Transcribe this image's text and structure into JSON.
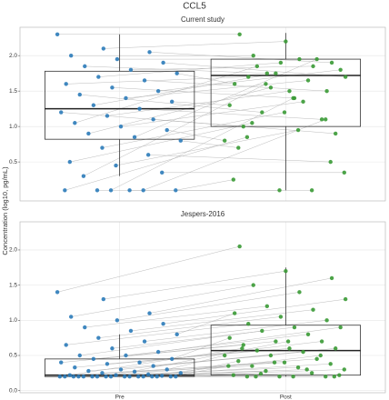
{
  "title": "CCL5",
  "y_label": "Concentration (log10, pg/mL)",
  "chart_data": [
    {
      "type": "box",
      "title": "Current study",
      "paired": true,
      "grid": true,
      "colors": [
        "#2b7bb9",
        "#3a9a35"
      ],
      "ylim": [
        -0.05,
        2.4
      ],
      "yticks": [
        0.5,
        {
          "value": 1,
          "label": "1.0"
        },
        1.5,
        {
          "value": 2,
          "label": "2.0"
        }
      ],
      "boxes": [
        {
          "low": 0.3,
          "q1": 0.82,
          "median": 1.25,
          "q3": 1.78,
          "high": 2.3
        },
        {
          "low": 0.1,
          "q1": 1.0,
          "median": 1.72,
          "q3": 1.95,
          "high": 2.32
        }
      ],
      "points": [
        [
          2.3,
          2.1,
          2.05,
          2.0,
          1.95,
          1.9,
          1.85,
          1.8,
          1.75,
          1.7,
          1.65,
          1.6,
          1.55,
          1.5,
          1.45,
          1.4,
          1.35,
          1.3,
          1.25,
          1.2,
          1.15,
          1.1,
          1.05,
          1.0,
          0.95,
          0.9,
          0.85,
          0.8,
          0.7,
          0.6,
          0.5,
          0.45,
          0.35,
          0.3,
          0.1,
          0.1,
          0.1,
          0.1,
          0.1,
          0.1
        ],
        [
          2.3,
          2.2,
          1.9,
          2.0,
          1.95,
          1.7,
          1.75,
          1.85,
          1.6,
          1.9,
          1.5,
          1.7,
          1.4,
          1.8,
          1.2,
          1.65,
          1.3,
          1.75,
          1.1,
          1.0,
          1.5,
          0.9,
          1.85,
          1.35,
          0.8,
          1.55,
          1.95,
          0.7,
          1.2,
          0.5,
          1.05,
          0.95,
          0.35,
          1.6,
          0.1,
          0.25,
          0.1,
          1.1,
          0.85,
          1.4
        ]
      ]
    },
    {
      "type": "box",
      "title": "Jespers-2016",
      "paired": true,
      "grid": true,
      "categories": [
        "Pre",
        "Post"
      ],
      "colors": [
        "#2b7bb9",
        "#3a9a35"
      ],
      "ylim": [
        -0.03,
        2.4
      ],
      "yticks": [
        {
          "value": 0,
          "label": "0.0"
        },
        0.5,
        {
          "value": 1,
          "label": "1.0"
        },
        1.5,
        {
          "value": 2,
          "label": "2.0"
        }
      ],
      "boxes": [
        {
          "low": 0.2,
          "q1": 0.2,
          "median": 0.22,
          "q3": 0.45,
          "high": 0.8
        },
        {
          "low": 0.2,
          "q1": 0.22,
          "median": 0.57,
          "q3": 0.93,
          "high": 1.75
        }
      ],
      "points": [
        [
          1.4,
          1.3,
          1.1,
          1.05,
          1.0,
          0.95,
          0.9,
          0.85,
          0.8,
          0.75,
          0.7,
          0.65,
          0.6,
          0.55,
          0.5,
          0.5,
          0.45,
          0.45,
          0.4,
          0.4,
          0.38,
          0.35,
          0.33,
          0.3,
          0.3,
          0.28,
          0.27,
          0.25,
          0.25,
          0.23,
          0.22,
          0.22,
          0.21,
          0.2,
          0.2,
          0.2,
          0.2,
          0.2,
          0.2,
          0.2,
          0.2,
          0.2,
          0.2,
          0.2,
          0.2,
          0.2,
          0.2,
          0.2,
          0.2,
          0.2
        ],
        [
          2.05,
          1.7,
          1.6,
          1.5,
          1.4,
          1.3,
          1.2,
          1.15,
          1.1,
          1.05,
          1.0,
          0.95,
          0.9,
          0.9,
          0.85,
          0.8,
          0.75,
          0.7,
          0.7,
          0.65,
          0.6,
          0.6,
          0.57,
          0.55,
          0.5,
          0.5,
          0.45,
          0.42,
          0.4,
          0.38,
          0.35,
          0.33,
          0.3,
          0.28,
          0.25,
          0.22,
          0.2,
          0.2,
          0.2,
          0.2,
          0.22,
          0.24,
          0.3,
          0.35,
          0.4,
          0.5,
          0.6,
          0.7,
          0.2,
          0.2
        ]
      ]
    }
  ]
}
